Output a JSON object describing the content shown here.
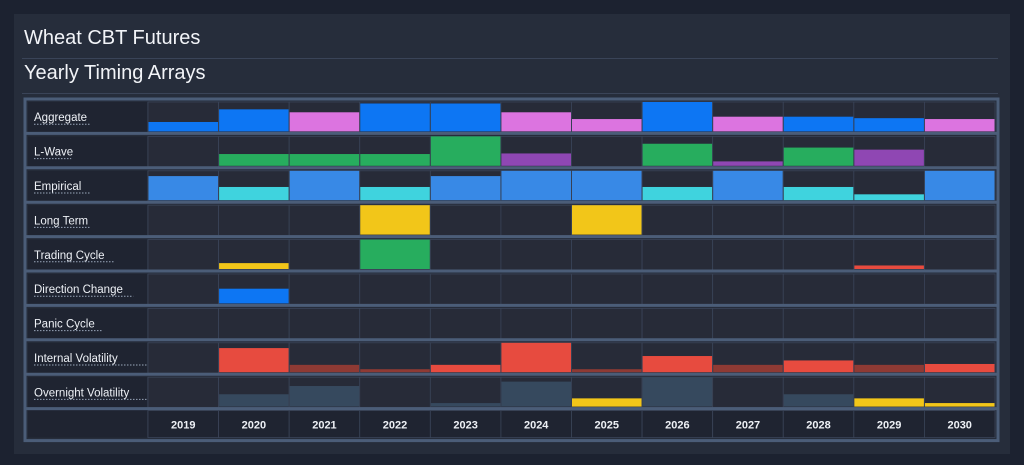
{
  "header": {
    "title": "Wheat CBT Futures",
    "subtitle": "Yearly Timing Arrays"
  },
  "chart_data": {
    "type": "heatmap",
    "title": "Yearly Timing Arrays",
    "years": [
      "2019",
      "2020",
      "2021",
      "2022",
      "2023",
      "2024",
      "2025",
      "2026",
      "2027",
      "2028",
      "2029",
      "2030"
    ],
    "colors": {
      "blue": "#0d76f3",
      "pink": "#dc74e0",
      "green": "#27ad5e",
      "purple": "#8f47b3",
      "lightblue": "#3889e6",
      "cyan": "#3fd3de",
      "yellow": "#f2c619",
      "red": "#e74b3f",
      "darkred": "#8e3a34",
      "slate": "#36495e"
    },
    "rows": [
      {
        "label": "Aggregate",
        "values": [
          0.32,
          0.75,
          0.65,
          0.95,
          0.95,
          0.65,
          0.42,
          1.0,
          0.5,
          0.5,
          0.45,
          0.42
        ],
        "colors": [
          "blue",
          "blue",
          "pink",
          "blue",
          "blue",
          "pink",
          "pink",
          "blue",
          "pink",
          "blue",
          "blue",
          "pink"
        ]
      },
      {
        "label": "L-Wave",
        "values": [
          0,
          0.4,
          0.4,
          0.4,
          1.0,
          0.42,
          0,
          0.75,
          0.15,
          0.62,
          0.55,
          0
        ],
        "colors": [
          "green",
          "green",
          "green",
          "green",
          "green",
          "purple",
          "green",
          "green",
          "purple",
          "green",
          "purple",
          "green"
        ]
      },
      {
        "label": "Empirical",
        "values": [
          0.82,
          0.45,
          1.0,
          0.45,
          0.82,
          1.0,
          1.0,
          0.45,
          1.0,
          0.45,
          0.2,
          1.0
        ],
        "colors": [
          "lightblue",
          "cyan",
          "lightblue",
          "cyan",
          "lightblue",
          "lightblue",
          "lightblue",
          "cyan",
          "lightblue",
          "cyan",
          "cyan",
          "lightblue"
        ]
      },
      {
        "label": "Long Term",
        "values": [
          0,
          0,
          0,
          1.0,
          0,
          0,
          1.0,
          0,
          0,
          0,
          0,
          0
        ],
        "colors": [
          "yellow",
          "yellow",
          "yellow",
          "yellow",
          "yellow",
          "yellow",
          "yellow",
          "yellow",
          "yellow",
          "yellow",
          "yellow",
          "yellow"
        ]
      },
      {
        "label": "Trading Cycle",
        "values": [
          0,
          0.2,
          0,
          1.0,
          0,
          0,
          0,
          0,
          0,
          0,
          0.12,
          0
        ],
        "colors": [
          "yellow",
          "yellow",
          "green",
          "green",
          "green",
          "green",
          "green",
          "green",
          "green",
          "green",
          "red",
          "red"
        ]
      },
      {
        "label": "Direction Change",
        "values": [
          0,
          0.5,
          0,
          0,
          0,
          0,
          0,
          0,
          0,
          0,
          0,
          0
        ],
        "colors": [
          "blue",
          "blue",
          "blue",
          "blue",
          "blue",
          "blue",
          "blue",
          "blue",
          "blue",
          "blue",
          "blue",
          "blue"
        ]
      },
      {
        "label": "Panic Cycle",
        "values": [
          0,
          0,
          0,
          0,
          0,
          0,
          0,
          0,
          0,
          0,
          0,
          0
        ],
        "colors": [
          "red",
          "red",
          "red",
          "red",
          "red",
          "red",
          "red",
          "red",
          "red",
          "red",
          "red",
          "red"
        ]
      },
      {
        "label": "Internal Volatility",
        "values": [
          0,
          0.82,
          0.25,
          0.1,
          0.25,
          1.0,
          0.1,
          0.55,
          0.25,
          0.4,
          0.25,
          0.28
        ],
        "colors": [
          "red",
          "red",
          "darkred",
          "darkred",
          "red",
          "red",
          "darkred",
          "red",
          "darkred",
          "red",
          "darkred",
          "red"
        ]
      },
      {
        "label": "Overnight Volatility",
        "values": [
          0,
          0.42,
          0.7,
          0,
          0.12,
          0.85,
          0.28,
          1.0,
          0,
          0.42,
          0.28,
          0.12
        ],
        "colors": [
          "slate",
          "slate",
          "slate",
          "slate",
          "slate",
          "slate",
          "yellow",
          "slate",
          "slate",
          "slate",
          "yellow",
          "yellow"
        ]
      }
    ]
  }
}
